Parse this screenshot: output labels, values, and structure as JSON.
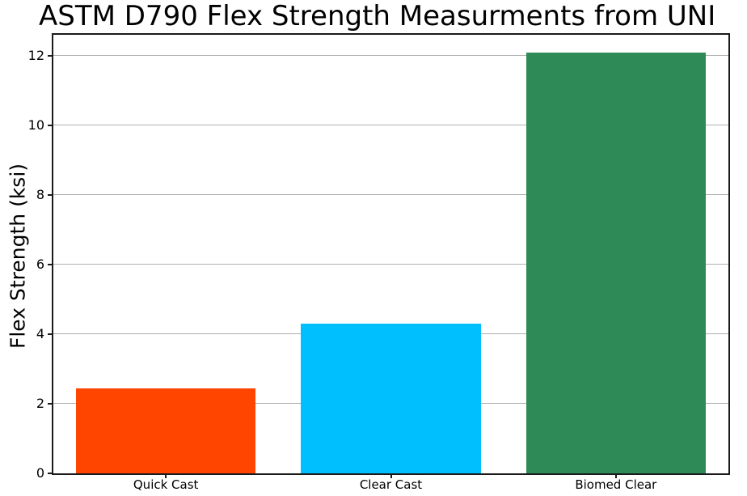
{
  "chart_data": {
    "type": "bar",
    "title": "ASTM D790 Flex Strength Measurments from UNI",
    "ylabel": "Flex Strength (ksi)",
    "xlabel": "",
    "categories": [
      "Quick Cast",
      "Clear Cast",
      "Biomed Clear"
    ],
    "values": [
      2.45,
      4.3,
      12.1
    ],
    "bar_colors": [
      "#FF4500",
      "#00BFFF",
      "#2E8B57"
    ],
    "yticks": [
      0,
      2,
      4,
      6,
      8,
      10,
      12
    ],
    "ylim": [
      0,
      12.6
    ],
    "bar_width_fraction": 0.8,
    "grid": "horizontal",
    "gridline_color": "#b0b0b0",
    "frame_color": "#1a1a1a",
    "background_color": "#ffffff"
  }
}
